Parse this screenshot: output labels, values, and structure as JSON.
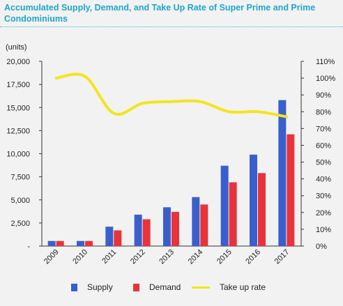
{
  "chart_data": {
    "type": "bar",
    "title": "Accumulated Supply, Demand, and Take Up Rate of Super Prime and Prime Condominiums",
    "y_unit_label": "(units)",
    "categories": [
      "2009",
      "2010",
      "2011",
      "2012",
      "2013",
      "2014",
      "2015",
      "2016",
      "2017"
    ],
    "series": [
      {
        "name": "Supply",
        "axis": "left",
        "kind": "bar",
        "color": "#3a5fcd",
        "values": [
          550,
          550,
          2100,
          3400,
          4200,
          5300,
          8700,
          9900,
          15800
        ]
      },
      {
        "name": "Demand",
        "axis": "left",
        "kind": "bar",
        "color": "#e8333b",
        "values": [
          550,
          550,
          1700,
          2900,
          3700,
          4500,
          6900,
          7900,
          12100
        ]
      },
      {
        "name": "Take up rate",
        "axis": "right",
        "kind": "line",
        "color": "#f2e51c",
        "values": [
          100,
          101,
          79,
          85,
          86,
          86,
          80,
          80,
          77
        ]
      }
    ],
    "y_left": {
      "min": 0,
      "max": 20000,
      "tick_values": [
        0,
        2500,
        5000,
        7500,
        10000,
        12500,
        15000,
        17500,
        20000
      ],
      "tick_labels": [
        "-",
        "2,500",
        "5,000",
        "7,500",
        "10,000",
        "12,500",
        "15,000",
        "17,500",
        "20,000"
      ]
    },
    "y_right": {
      "min": 0,
      "max": 110,
      "tick_values": [
        0,
        10,
        20,
        30,
        40,
        50,
        60,
        70,
        80,
        90,
        100,
        110
      ],
      "tick_labels": [
        "0%",
        "10%",
        "20%",
        "30%",
        "40%",
        "50%",
        "60%",
        "70%",
        "80%",
        "90%",
        "100%",
        "110%"
      ]
    },
    "grid": false,
    "legend_position": "bottom"
  }
}
